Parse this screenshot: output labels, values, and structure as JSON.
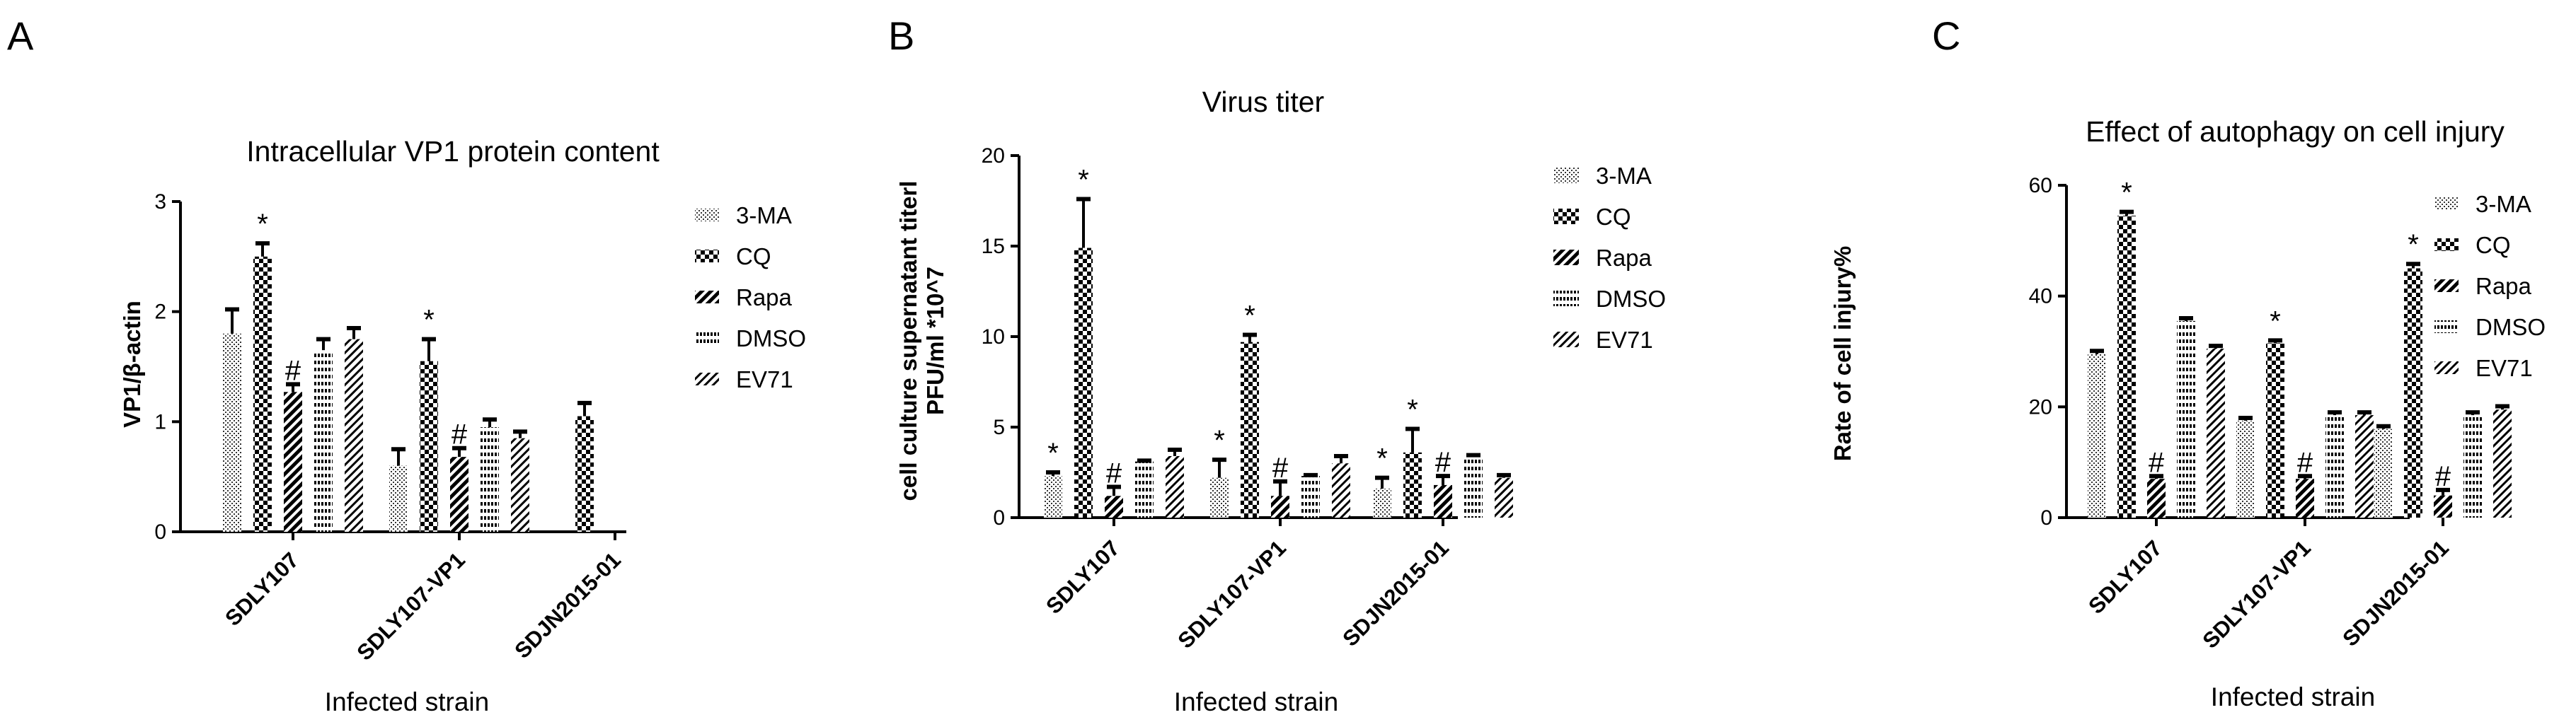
{
  "panels": [
    "A",
    "B",
    "C"
  ],
  "chart_data": [
    {
      "type": "bar",
      "panel": "A",
      "title": "Intracellular VP1 protein content",
      "xlabel": "Infected strain",
      "ylabel": "VP1/β-actin",
      "categories": [
        "SDLY107",
        "SDLY107-VP1",
        "SDJN2015-01"
      ],
      "ylim": [
        0,
        3
      ],
      "yticks": [
        "0",
        "1",
        "2",
        "3"
      ],
      "legend": {
        "position": "right"
      },
      "series": [
        {
          "name": "3-MA",
          "values": [
            1.8,
            0.6,
            null
          ],
          "errors": [
            0.22,
            0.15,
            null
          ],
          "annotations": [
            "",
            "",
            ""
          ]
        },
        {
          "name": "CQ",
          "values": [
            2.5,
            1.55,
            1.05
          ],
          "errors": [
            0.12,
            0.2,
            0.12
          ],
          "annotations": [
            "*",
            "*",
            ""
          ]
        },
        {
          "name": "Rapa",
          "values": [
            1.27,
            0.68,
            null
          ],
          "errors": [
            0.07,
            0.08,
            null
          ],
          "annotations": [
            "#",
            "#",
            ""
          ]
        },
        {
          "name": "DMSO",
          "values": [
            1.65,
            0.95,
            null
          ],
          "errors": [
            0.1,
            0.07,
            null
          ],
          "annotations": [
            "",
            "",
            ""
          ]
        },
        {
          "name": "EV71",
          "values": [
            1.75,
            0.85,
            null
          ],
          "errors": [
            0.1,
            0.06,
            null
          ],
          "annotations": [
            "",
            "",
            ""
          ]
        }
      ]
    },
    {
      "type": "bar",
      "panel": "B",
      "title": "Virus titer",
      "xlabel": "Infected strain",
      "ylabel_lines": [
        "cell culture supernatant titerl",
        "PFU/ml *10^7"
      ],
      "categories": [
        "SDLY107",
        "SDLY107-VP1",
        "SDJN2015-01"
      ],
      "ylim": [
        0,
        20
      ],
      "yticks": [
        "0",
        "5",
        "10",
        "15",
        "20"
      ],
      "legend": {
        "position": "right"
      },
      "series": [
        {
          "name": "3-MA",
          "values": [
            2.3,
            2.2,
            1.6
          ],
          "errors": [
            0.2,
            1.0,
            0.6
          ],
          "annotations": [
            "*",
            "*",
            "*"
          ]
        },
        {
          "name": "CQ",
          "values": [
            14.9,
            9.7,
            3.6
          ],
          "errors": [
            2.7,
            0.4,
            1.3
          ],
          "annotations": [
            "*",
            "*",
            "*"
          ]
        },
        {
          "name": "Rapa",
          "values": [
            1.2,
            1.2,
            1.8
          ],
          "errors": [
            0.5,
            0.8,
            0.5
          ],
          "annotations": [
            "#",
            "#",
            "#"
          ]
        },
        {
          "name": "DMSO",
          "values": [
            3.1,
            2.3,
            3.4
          ],
          "errors": [
            0.05,
            0.05,
            0.05
          ],
          "annotations": [
            "",
            "",
            ""
          ]
        },
        {
          "name": "EV71",
          "values": [
            3.4,
            3.0,
            2.2
          ],
          "errors": [
            0.35,
            0.4,
            0.15
          ],
          "annotations": [
            "",
            "",
            ""
          ]
        }
      ]
    },
    {
      "type": "bar",
      "panel": "C",
      "title": "Effect of autophagy on cell injury",
      "xlabel": "Infected strain",
      "ylabel": "Rate of cell injury%",
      "categories": [
        "SDLY107",
        "SDLY107-VP1",
        "SDJN2015-01"
      ],
      "ylim": [
        0,
        60
      ],
      "yticks": [
        "0",
        "20",
        "40",
        "60"
      ],
      "legend": {
        "position": "right"
      },
      "series": [
        {
          "name": "3-MA",
          "values": [
            29.5,
            17.5,
            16.0
          ],
          "errors": [
            0.6,
            0.5,
            0.5
          ],
          "annotations": [
            "",
            "",
            ""
          ]
        },
        {
          "name": "CQ",
          "values": [
            54.5,
            31.5,
            45.0
          ],
          "errors": [
            0.7,
            0.5,
            0.8
          ],
          "annotations": [
            "*",
            "*",
            "*"
          ]
        },
        {
          "name": "Rapa",
          "values": [
            7.0,
            7.0,
            4.0
          ],
          "errors": [
            0.5,
            0.5,
            1.0
          ],
          "annotations": [
            "#",
            "#",
            "#"
          ]
        },
        {
          "name": "DMSO",
          "values": [
            35.5,
            18.5,
            18.5
          ],
          "errors": [
            0.5,
            0.5,
            0.5
          ],
          "annotations": [
            "",
            "",
            ""
          ]
        },
        {
          "name": "EV71",
          "values": [
            30.5,
            18.5,
            19.5
          ],
          "errors": [
            0.5,
            0.5,
            0.6
          ],
          "annotations": [
            "",
            "",
            ""
          ]
        }
      ]
    }
  ]
}
